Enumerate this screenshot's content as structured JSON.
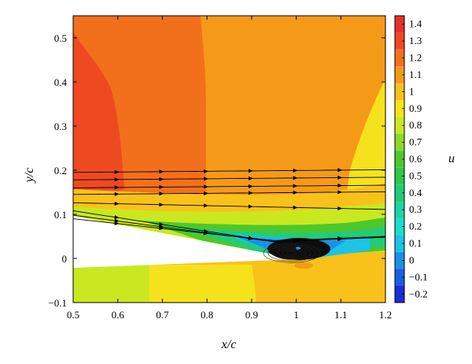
{
  "chart_data": {
    "type": "heatmap",
    "title": "",
    "xlabel": "x/c",
    "ylabel": "y/c",
    "xlim": [
      0.5,
      1.2
    ],
    "ylim": [
      -0.1,
      0.55
    ],
    "xticks": [
      0.5,
      0.6,
      0.7,
      0.8,
      0.9,
      1.0,
      1.1,
      1.2
    ],
    "xtick_labels": [
      "0.5",
      "0.6",
      "0.7",
      "0.8",
      "0.9",
      "1",
      "1.1",
      "1.2"
    ],
    "yticks": [
      -0.1,
      0,
      0.1,
      0.2,
      0.3,
      0.4,
      0.5
    ],
    "ytick_labels": [
      "−0.1",
      "0",
      "0.1",
      "0.2",
      "0.3",
      "0.4",
      "0.5"
    ],
    "colorbar": {
      "label": "u",
      "levels": [
        1.4,
        1.3,
        1.2,
        1.1,
        1.0,
        0.9,
        0.8,
        0.7,
        0.6,
        0.5,
        0.4,
        0.3,
        0.2,
        0.1,
        0.0,
        -0.1,
        -0.2
      ],
      "level_labels": [
        "1.4",
        "1.3",
        "1.2",
        "1.1",
        "1",
        "0.9",
        "0.8",
        "0.7",
        "0.6",
        "0.5",
        "0.4",
        "0.3",
        "0.2",
        "0.1",
        "0",
        "−0.1",
        "−0.2"
      ],
      "colors": [
        "#e8302a",
        "#ee4a22",
        "#f2701c",
        "#f59a18",
        "#f8c21a",
        "#f6e21c",
        "#c9e820",
        "#8ed82a",
        "#4cc82c",
        "#2ec84a",
        "#22cc78",
        "#1ed4a6",
        "#1cdcd0",
        "#1cc4e6",
        "#1a92e6",
        "#1a5ee2",
        "#1a2ed8"
      ]
    },
    "airfoil_surface": {
      "upper": [
        [
          0.5,
          0.095
        ],
        [
          0.6,
          0.075
        ],
        [
          0.7,
          0.055
        ],
        [
          0.8,
          0.035
        ],
        [
          0.9,
          0.017
        ],
        [
          1.0,
          0.0
        ]
      ],
      "lower": [
        [
          0.5,
          -0.012
        ],
        [
          0.6,
          -0.01
        ],
        [
          0.7,
          -0.008
        ],
        [
          0.8,
          -0.006
        ],
        [
          0.9,
          -0.003
        ],
        [
          1.0,
          0.0
        ]
      ]
    },
    "separation_bubble": {
      "center": [
        0.99,
        0.012
      ],
      "extent_x": [
        0.93,
        1.05
      ],
      "extent_y": [
        -0.002,
        0.04
      ]
    },
    "regions": [
      {
        "u": 1.3,
        "desc": "band near x/c 0.5–0.6 above y/c 0.1"
      },
      {
        "u": 1.2,
        "desc": "x/c 0.6–0.8 above y/c 0.12"
      },
      {
        "u": 1.1,
        "desc": "x/c 0.8–1.2 above y/c 0.15"
      },
      {
        "u": 1.0,
        "desc": "near x/c 1.1–1.2 above y/c 0.1"
      },
      {
        "u": 0.9,
        "desc": "wake and shear layer above airfoil"
      },
      {
        "u": 0.8,
        "desc": "below airfoil x/c 0.5–0.7"
      },
      {
        "u": 0.0,
        "desc": "separation bubble near trailing edge"
      }
    ],
    "streamlines_y_at_left": [
      0.195,
      0.178,
      0.16,
      0.145,
      0.126,
      0.108,
      0.098,
      0.09
    ],
    "grid": false,
    "legend": "colorbar-right"
  }
}
